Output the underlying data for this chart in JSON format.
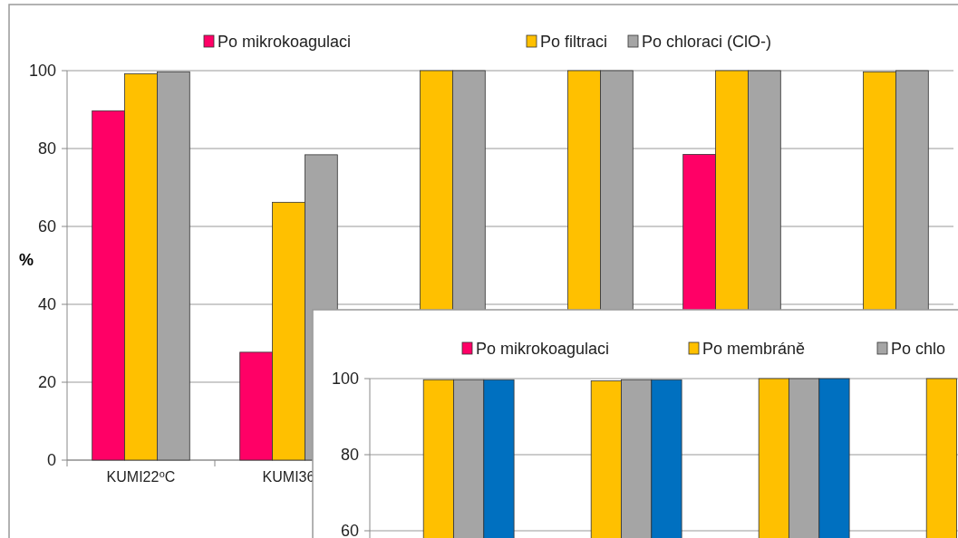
{
  "chart_data": [
    {
      "type": "bar",
      "ylabel": "%",
      "categories": [
        "KUMI22⁰C",
        "KUMI36",
        null,
        null,
        null,
        null
      ],
      "series": [
        {
          "name": "Po mikrokoagulaci",
          "color": "#ff0066",
          "values": [
            89.7,
            27.7,
            null,
            null,
            78.5,
            null
          ]
        },
        {
          "name": "Po filtraci",
          "color": "#ffc000",
          "values": [
            99.2,
            66.2,
            100,
            100,
            100,
            99.7
          ]
        },
        {
          "name": "Po chloraci (ClO-)",
          "color": "#a5a5a5",
          "values": [
            99.7,
            78.4,
            100,
            100,
            100,
            100
          ]
        }
      ],
      "ylim": [
        0,
        100
      ],
      "yticks": [
        0,
        20,
        40,
        60,
        80,
        100
      ],
      "grid": "y",
      "legend": "top"
    },
    {
      "type": "bar",
      "categories": [
        null,
        null,
        null,
        null
      ],
      "series": [
        {
          "name": "Po mikrokoagulaci",
          "color": "#ff0066",
          "values": [
            null,
            null,
            null,
            null
          ]
        },
        {
          "name": "Po membráně",
          "color": "#ffc000",
          "values": [
            99.7,
            99.4,
            100,
            100
          ]
        },
        {
          "name": "Po chlo",
          "color": "#a5a5a5",
          "values": [
            99.7,
            99.7,
            100,
            null
          ]
        },
        {
          "color": "#0070c0",
          "values": [
            99.7,
            99.7,
            100,
            null
          ]
        }
      ],
      "ylim": [
        0,
        100
      ],
      "yticks": [
        60,
        80,
        100
      ],
      "grid": "y",
      "legend": "top",
      "tick_labels": "y"
    }
  ]
}
